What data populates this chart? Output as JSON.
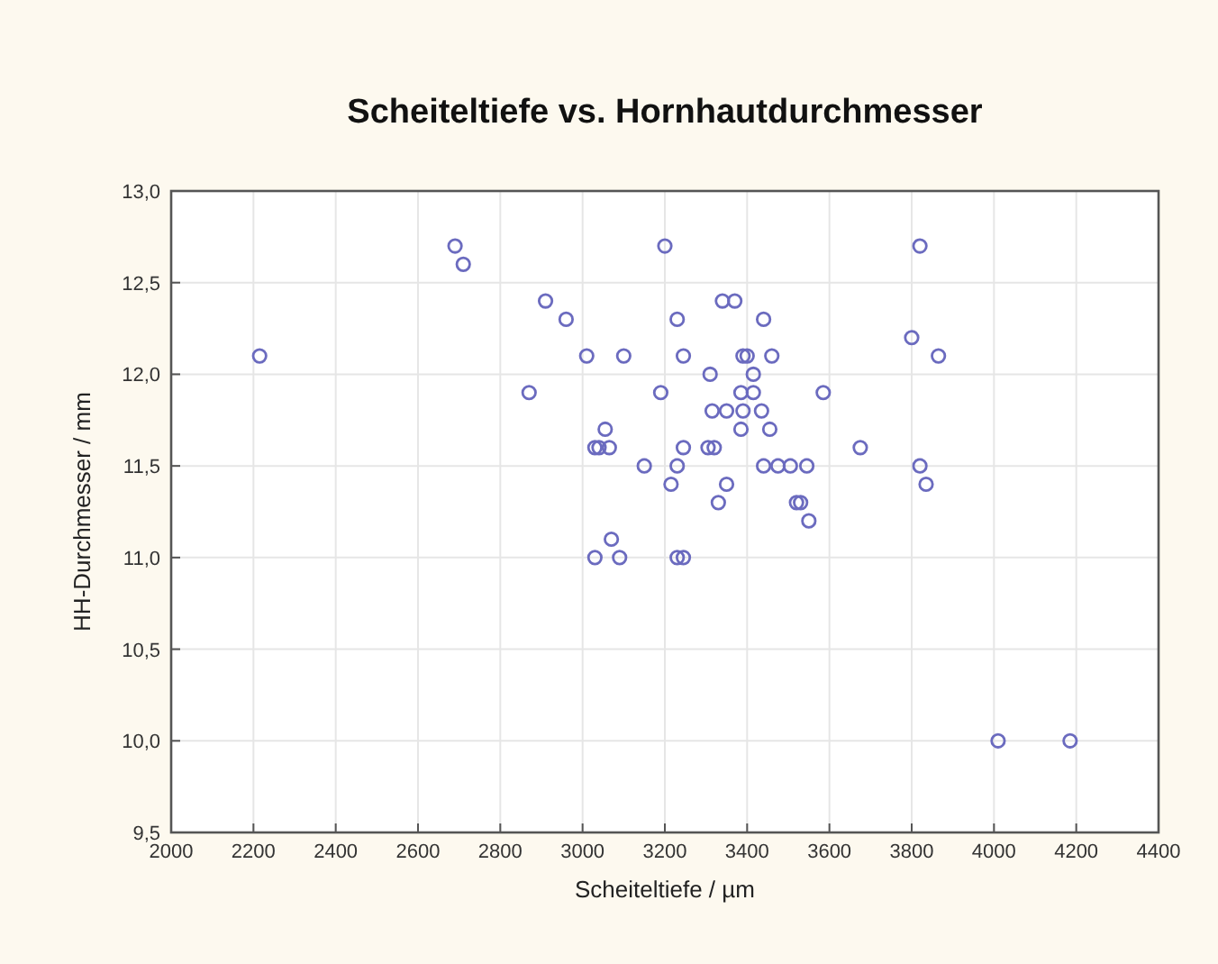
{
  "chart_data": {
    "type": "scatter",
    "title": "Scheiteltiefe vs. Hornhautdurchmesser",
    "xlabel": "Scheiteltiefe / µm",
    "ylabel": "HH-Durchmesser / mm",
    "xlim": [
      2000,
      4400
    ],
    "xticks": [
      2000,
      2200,
      2400,
      2600,
      2800,
      3000,
      3200,
      3400,
      3600,
      3800,
      4000,
      4200,
      4400
    ],
    "ylim": [
      9.5,
      13.0
    ],
    "yticks": [
      {
        "value": 9.5,
        "label": "9,5"
      },
      {
        "value": 10,
        "label": "10,0"
      },
      {
        "value": 10.5,
        "label": "10,5"
      },
      {
        "value": 11,
        "label": "11,0"
      },
      {
        "value": 11.5,
        "label": "11,5"
      },
      {
        "value": 12,
        "label": "12,0"
      },
      {
        "value": 12.5,
        "label": "12,5"
      },
      {
        "value": 13,
        "label": "13,0"
      }
    ],
    "grid": true,
    "marker": "circle",
    "series": [
      {
        "color": "#6b6bbf",
        "x": [
          2690,
          2710,
          2910,
          2960,
          2215,
          3010,
          3100,
          2870,
          3190,
          3055,
          3030,
          3040,
          3065,
          3150,
          3215,
          3070,
          3030,
          3090,
          3200,
          3820,
          3230,
          3340,
          3370,
          3440,
          3245,
          3390,
          3400,
          3460,
          3800,
          3865,
          3310,
          3415,
          3385,
          3415,
          3585,
          3315,
          3350,
          3390,
          3435,
          3385,
          3455,
          3245,
          3305,
          3320,
          3675,
          3230,
          3440,
          3475,
          3505,
          3545,
          3820,
          3350,
          3835,
          3330,
          3520,
          3530,
          3550,
          3230,
          3245,
          4010,
          4185
        ],
        "values": [
          12.7,
          12.6,
          12.4,
          12.3,
          12.1,
          12.1,
          12.1,
          11.9,
          11.9,
          11.7,
          11.6,
          11.6,
          11.6,
          11.5,
          11.4,
          11.1,
          11.0,
          11.0,
          12.7,
          12.7,
          12.3,
          12.4,
          12.4,
          12.3,
          12.1,
          12.1,
          12.1,
          12.1,
          12.2,
          12.1,
          12.0,
          12.0,
          11.9,
          11.9,
          11.9,
          11.8,
          11.8,
          11.8,
          11.8,
          11.7,
          11.7,
          11.6,
          11.6,
          11.6,
          11.6,
          11.5,
          11.5,
          11.5,
          11.5,
          11.5,
          11.5,
          11.4,
          11.4,
          11.3,
          11.3,
          11.3,
          11.2,
          11.0,
          11.0,
          10.0,
          10.0
        ]
      }
    ]
  }
}
